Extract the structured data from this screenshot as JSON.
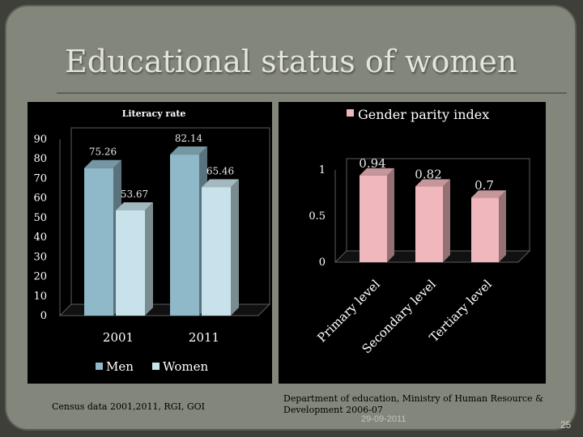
{
  "slide": {
    "title": "Educational status of women",
    "source_left": "Census data 2001,2011, RGI, GOI",
    "source_right": "Department of education, Ministry of Human Resource & Development  2006-07",
    "date": "29-09-2011",
    "page_number": "25"
  },
  "chart_data": [
    {
      "type": "bar",
      "title": "Literacy rate",
      "categories": [
        "2001",
        "2011"
      ],
      "series": [
        {
          "name": "Men",
          "values": [
            75.26,
            82.14
          ]
        },
        {
          "name": "Women",
          "values": [
            53.67,
            65.46
          ]
        }
      ],
      "ylim": [
        0,
        90
      ],
      "yticks": [
        0,
        10,
        20,
        30,
        40,
        50,
        60,
        70,
        80,
        90
      ],
      "legend": "bottom",
      "grid": false,
      "colors": {
        "Men": "#8fb8c8",
        "Women": "#c7e2ea"
      }
    },
    {
      "type": "bar",
      "title": "",
      "categories": [
        "Primary level",
        "Secondary level",
        "Tertiary level"
      ],
      "series": [
        {
          "name": "Gender parity index",
          "values": [
            0.94,
            0.82,
            0.7
          ]
        }
      ],
      "ylim": [
        0,
        1
      ],
      "yticks": [
        "0",
        "0.5",
        "1"
      ],
      "legend": "top",
      "grid": false,
      "colors": {
        "Gender parity index": "#f0b7bc"
      }
    }
  ]
}
